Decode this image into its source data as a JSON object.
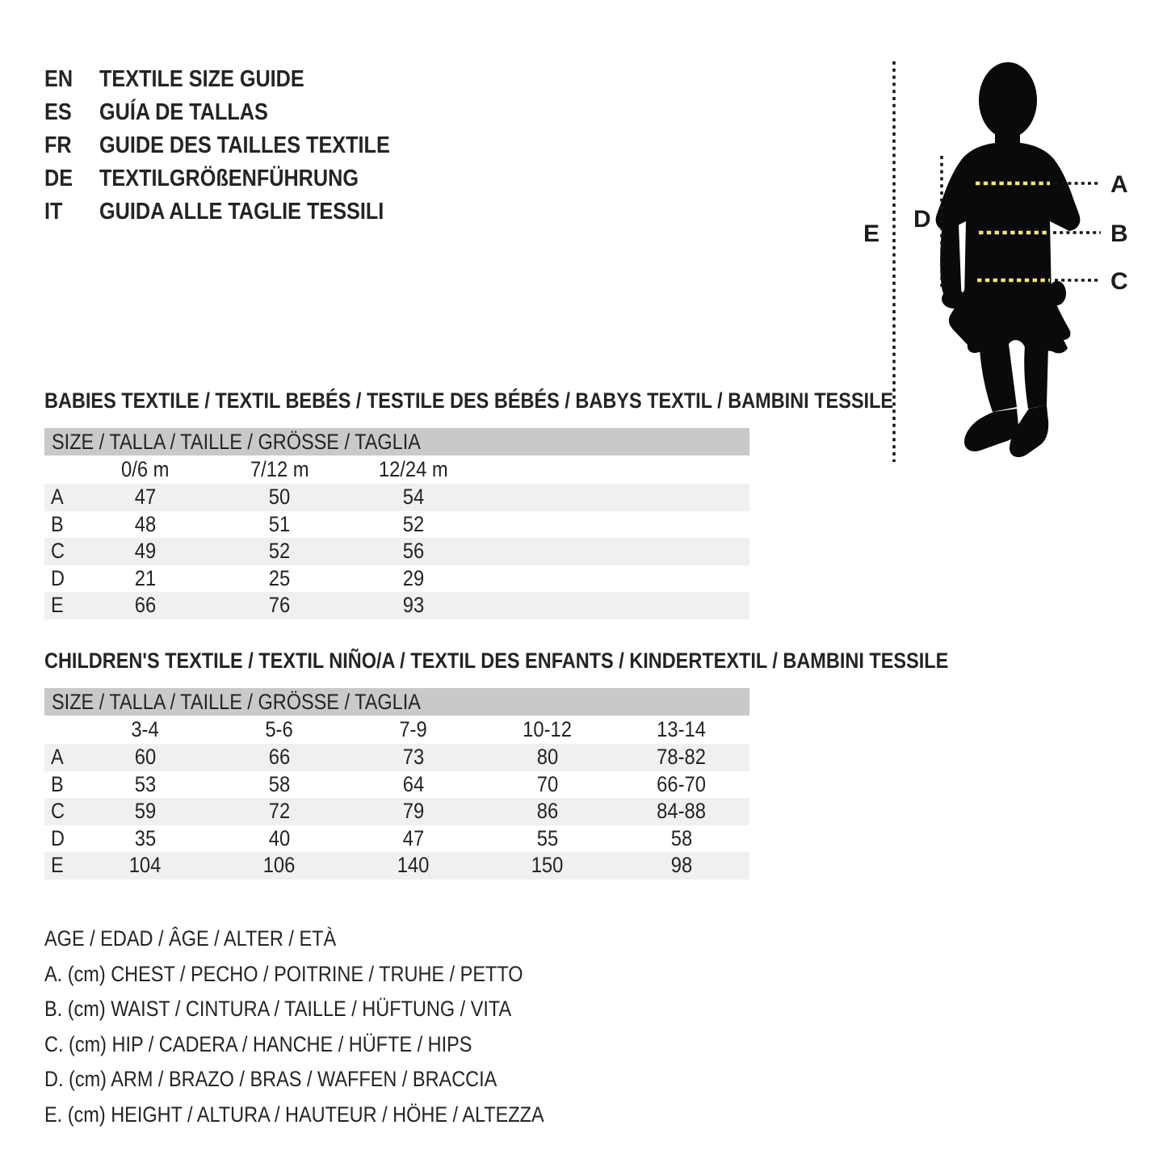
{
  "header": {
    "items": [
      {
        "code": "EN",
        "title": "TEXTILE SIZE GUIDE"
      },
      {
        "code": "ES",
        "title": "GUÍA DE TALLAS"
      },
      {
        "code": "FR",
        "title": "GUIDE DES TAILLES TEXTILE"
      },
      {
        "code": "DE",
        "title": "TEXTILGRÖßENFÜHRUNG"
      },
      {
        "code": "IT",
        "title": "GUIDA ALLE TAGLIE TESSILI"
      }
    ]
  },
  "diagram": {
    "labels": {
      "a": "A",
      "b": "B",
      "c": "C",
      "d": "D",
      "e": "E"
    },
    "colors": {
      "silhouette": "#0a0a0a",
      "measure_dash_yellow": "#efe289",
      "measure_dash_black": "#141414"
    }
  },
  "babies_table": {
    "section_title": "BABIES TEXTILE / TEXTIL BEBÉS / TESTILE DES BÉBÉS / BABYS TEXTIL / BAMBINI TESSILE",
    "size_header": "SIZE / TALLA / TAILLE / GRÖSSE / TAGLIA",
    "columns": [
      "0/6 m",
      "7/12 m",
      "12/24 m"
    ],
    "rows": [
      {
        "label": "A",
        "values": [
          "47",
          "50",
          "54"
        ]
      },
      {
        "label": "B",
        "values": [
          "48",
          "51",
          "52"
        ]
      },
      {
        "label": "C",
        "values": [
          "49",
          "52",
          "56"
        ]
      },
      {
        "label": "D",
        "values": [
          "21",
          "25",
          "29"
        ]
      },
      {
        "label": "E",
        "values": [
          "66",
          "76",
          "93"
        ]
      }
    ]
  },
  "children_table": {
    "section_title": "CHILDREN'S TEXTILE / TEXTIL NIÑO/A / TEXTIL DES ENFANTS / KINDERTEXTIL / BAMBINI TESSILE",
    "size_header": "SIZE / TALLA / TAILLE / GRÖSSE / TAGLIA",
    "columns": [
      "3-4",
      "5-6",
      "7-9",
      "10-12",
      "13-14"
    ],
    "rows": [
      {
        "label": "A",
        "values": [
          "60",
          "66",
          "73",
          "80",
          "78-82"
        ]
      },
      {
        "label": "B",
        "values": [
          "53",
          "58",
          "64",
          "70",
          "66-70"
        ]
      },
      {
        "label": "C",
        "values": [
          "59",
          "72",
          "79",
          "86",
          "84-88"
        ]
      },
      {
        "label": "D",
        "values": [
          "35",
          "40",
          "47",
          "55",
          "58"
        ]
      },
      {
        "label": "E",
        "values": [
          "104",
          "106",
          "140",
          "150",
          "98"
        ]
      }
    ]
  },
  "legend": {
    "lines": [
      "AGE / EDAD / ÂGE / ALTER / ETÀ",
      "A. (cm) CHEST / PECHO / POITRINE / TRUHE / PETTO",
      "B. (cm) WAIST / CINTURA / TAILLE / HÜFTUNG / VITA",
      "C. (cm) HIP / CADERA / HANCHE / HÜFTE / HIPS",
      "D. (cm) ARM / BRAZO / BRAS / WAFFEN / BRACCIA",
      "E. (cm) HEIGHT / ALTURA / HAUTEUR / HÖHE / ALTEZZA"
    ]
  },
  "colors": {
    "table_header_bg": "#c9c9c9",
    "row_stripe_bg": "#f0f0f0",
    "text": "#242424"
  }
}
